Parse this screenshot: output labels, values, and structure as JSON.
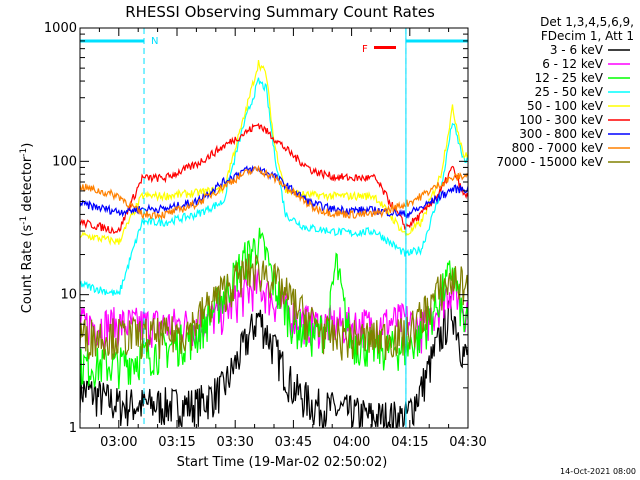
{
  "chart_data": {
    "type": "line",
    "title": "RHESSI Observing Summary Count Rates",
    "xlabel": "Start Time (19-Mar-02 02:50:02)",
    "ylabel_parts": [
      "Count Rate (s",
      "-1",
      " detector",
      "-1",
      ")"
    ],
    "yscale": "log",
    "ylim": [
      1,
      1000
    ],
    "xlim_minutes": [
      0,
      100
    ],
    "x_ticks": [
      {
        "m": 10,
        "label": "03:00"
      },
      {
        "m": 25,
        "label": "03:15"
      },
      {
        "m": 40,
        "label": "03:30"
      },
      {
        "m": 55,
        "label": "03:45"
      },
      {
        "m": 70,
        "label": "04:00"
      },
      {
        "m": 85,
        "label": "04:15"
      },
      {
        "m": 100,
        "label": "04:30"
      }
    ],
    "y_ticks": [
      {
        "v": 1,
        "label": "1"
      },
      {
        "v": 10,
        "label": "10"
      },
      {
        "v": 100,
        "label": "100"
      },
      {
        "v": 1000,
        "label": "1000"
      }
    ],
    "legend_header": [
      "Det 1,3,4,5,6,9,",
      "FDecim 1, Att 1"
    ],
    "legend_position": "outside-right",
    "flag_labels": [
      "N",
      "F"
    ],
    "night_intervals": [
      [
        0,
        16.5
      ],
      [
        84,
        100
      ]
    ],
    "flare_flag_color": "#ff0000",
    "footer_date": "14-Oct-2021 08:00",
    "series": [
      {
        "name": "3 - 6 keV",
        "color": "#000000",
        "points": [
          [
            0,
            2
          ],
          [
            10,
            1.5
          ],
          [
            16,
            1.5
          ],
          [
            22,
            1.5
          ],
          [
            30,
            1.5
          ],
          [
            37,
            2
          ],
          [
            42,
            4
          ],
          [
            46,
            7
          ],
          [
            50,
            4
          ],
          [
            55,
            2
          ],
          [
            60,
            1.5
          ],
          [
            70,
            1.3
          ],
          [
            76,
            1.2
          ],
          [
            84,
            1.2
          ],
          [
            88,
            2
          ],
          [
            93,
            5
          ],
          [
            96,
            8
          ],
          [
            99,
            3.5
          ]
        ]
      },
      {
        "name": "6 - 12 keV",
        "color": "#ff00ff",
        "points": [
          [
            0,
            6
          ],
          [
            10,
            6
          ],
          [
            16,
            6
          ],
          [
            22,
            6
          ],
          [
            30,
            6
          ],
          [
            37,
            7.5
          ],
          [
            42,
            10
          ],
          [
            46,
            12
          ],
          [
            50,
            9
          ],
          [
            55,
            7
          ],
          [
            60,
            6
          ],
          [
            70,
            6
          ],
          [
            76,
            6
          ],
          [
            84,
            6.5
          ],
          [
            88,
            5.5
          ],
          [
            93,
            9
          ],
          [
            96,
            12
          ],
          [
            99,
            8
          ]
        ]
      },
      {
        "name": "12 - 25 keV",
        "color": "#00ff00",
        "points": [
          [
            0,
            3
          ],
          [
            10,
            3
          ],
          [
            16,
            3.5
          ],
          [
            22,
            4
          ],
          [
            30,
            5
          ],
          [
            37,
            10
          ],
          [
            42,
            18
          ],
          [
            46,
            25
          ],
          [
            48,
            20
          ],
          [
            50,
            12
          ],
          [
            55,
            6
          ],
          [
            60,
            5
          ],
          [
            64,
            6
          ],
          [
            66,
            18
          ],
          [
            68,
            8
          ],
          [
            70,
            4.5
          ],
          [
            76,
            4
          ],
          [
            84,
            4
          ],
          [
            88,
            5
          ],
          [
            93,
            10
          ],
          [
            96,
            16
          ],
          [
            99,
            6
          ]
        ]
      },
      {
        "name": "25 - 50 keV",
        "color": "#00ffff",
        "points": [
          [
            0,
            12
          ],
          [
            10,
            10
          ],
          [
            16,
            35
          ],
          [
            22,
            35
          ],
          [
            30,
            40
          ],
          [
            37,
            50
          ],
          [
            42,
            180
          ],
          [
            46,
            400
          ],
          [
            48,
            350
          ],
          [
            50,
            120
          ],
          [
            53,
            40
          ],
          [
            58,
            32
          ],
          [
            65,
            30
          ],
          [
            70,
            29
          ],
          [
            76,
            30
          ],
          [
            84,
            20
          ],
          [
            88,
            22
          ],
          [
            93,
            60
          ],
          [
            96,
            200
          ],
          [
            99,
            100
          ]
        ]
      },
      {
        "name": "50 - 100 keV",
        "color": "#ffff00",
        "points": [
          [
            0,
            28
          ],
          [
            10,
            25
          ],
          [
            16,
            55
          ],
          [
            22,
            55
          ],
          [
            30,
            58
          ],
          [
            37,
            62
          ],
          [
            42,
            200
          ],
          [
            46,
            550
          ],
          [
            48,
            450
          ],
          [
            50,
            140
          ],
          [
            53,
            60
          ],
          [
            58,
            56
          ],
          [
            65,
            55
          ],
          [
            70,
            55
          ],
          [
            76,
            55
          ],
          [
            84,
            28
          ],
          [
            88,
            35
          ],
          [
            93,
            80
          ],
          [
            96,
            250
          ],
          [
            99,
            110
          ]
        ]
      },
      {
        "name": "100 - 300 keV",
        "color": "#ff0000",
        "points": [
          [
            0,
            35
          ],
          [
            10,
            30
          ],
          [
            16,
            75
          ],
          [
            22,
            75
          ],
          [
            30,
            95
          ],
          [
            37,
            130
          ],
          [
            42,
            160
          ],
          [
            46,
            190
          ],
          [
            50,
            150
          ],
          [
            55,
            110
          ],
          [
            60,
            85
          ],
          [
            65,
            77
          ],
          [
            70,
            75
          ],
          [
            76,
            75
          ],
          [
            84,
            32
          ],
          [
            88,
            40
          ],
          [
            93,
            60
          ],
          [
            96,
            90
          ],
          [
            99,
            55
          ]
        ]
      },
      {
        "name": "300 - 800 keV",
        "color": "#0000ff",
        "points": [
          [
            0,
            48
          ],
          [
            10,
            42
          ],
          [
            16,
            44
          ],
          [
            22,
            44
          ],
          [
            30,
            50
          ],
          [
            37,
            70
          ],
          [
            42,
            85
          ],
          [
            46,
            88
          ],
          [
            50,
            78
          ],
          [
            55,
            60
          ],
          [
            60,
            48
          ],
          [
            65,
            44
          ],
          [
            70,
            43
          ],
          [
            76,
            43
          ],
          [
            84,
            40
          ],
          [
            88,
            45
          ],
          [
            93,
            55
          ],
          [
            96,
            62
          ],
          [
            99,
            62
          ]
        ]
      },
      {
        "name": "800 - 7000 keV",
        "color": "#ff8000",
        "points": [
          [
            0,
            65
          ],
          [
            10,
            55
          ],
          [
            16,
            40
          ],
          [
            22,
            40
          ],
          [
            30,
            48
          ],
          [
            37,
            65
          ],
          [
            42,
            80
          ],
          [
            46,
            88
          ],
          [
            50,
            75
          ],
          [
            55,
            58
          ],
          [
            60,
            45
          ],
          [
            65,
            41
          ],
          [
            70,
            40
          ],
          [
            76,
            40
          ],
          [
            84,
            48
          ],
          [
            88,
            55
          ],
          [
            93,
            68
          ],
          [
            96,
            75
          ],
          [
            99,
            78
          ]
        ]
      },
      {
        "name": "7000 - 15000 keV",
        "color": "#808000",
        "points": [
          [
            0,
            5
          ],
          [
            10,
            5
          ],
          [
            16,
            5
          ],
          [
            22,
            5
          ],
          [
            28,
            5.5
          ],
          [
            34,
            9
          ],
          [
            40,
            13
          ],
          [
            44,
            15.5
          ],
          [
            48,
            15
          ],
          [
            52,
            11
          ],
          [
            58,
            7
          ],
          [
            64,
            5
          ],
          [
            70,
            4.8
          ],
          [
            76,
            4.8
          ],
          [
            84,
            5
          ],
          [
            88,
            7
          ],
          [
            93,
            11
          ],
          [
            96,
            13
          ],
          [
            99,
            12
          ]
        ]
      }
    ]
  }
}
